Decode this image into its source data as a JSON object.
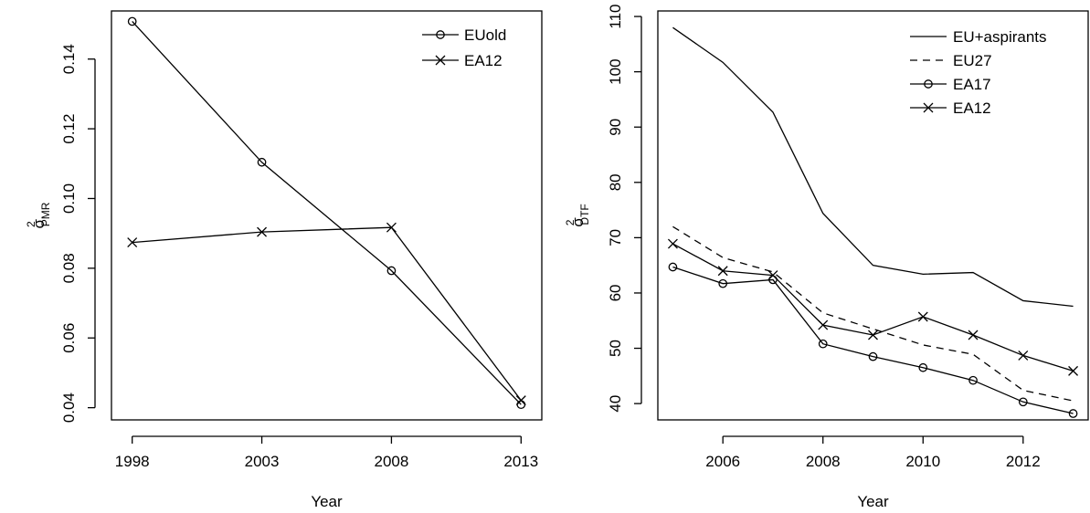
{
  "chart_data": [
    {
      "type": "line",
      "xlabel": "Year",
      "ylabel_main": "σ",
      "ylabel_sup": "2",
      "ylabel_sub": "PMR",
      "xlim": [
        1997.2,
        2013.8
      ],
      "ylim": [
        0.0365,
        0.1538
      ],
      "x_ticks": [
        1998,
        2003,
        2008,
        2013
      ],
      "y_ticks": [
        0.04,
        0.06,
        0.08,
        0.1,
        0.12,
        0.14
      ],
      "y_tick_labels": [
        "0.04",
        "0.06",
        "0.08",
        "0.10",
        "0.12",
        "0.14"
      ],
      "legend_position": "top-right",
      "series": [
        {
          "name": "EUold",
          "marker": "circle",
          "dash": "solid",
          "x": [
            1998,
            2003,
            2008,
            2013
          ],
          "y": [
            0.1508,
            0.1104,
            0.0793,
            0.0409
          ]
        },
        {
          "name": "EA12",
          "marker": "cross",
          "dash": "solid",
          "x": [
            1998,
            2003,
            2008,
            2013
          ],
          "y": [
            0.0874,
            0.0904,
            0.0917,
            0.0421
          ]
        }
      ]
    },
    {
      "type": "line",
      "xlabel": "Year",
      "ylabel_main": "σ",
      "ylabel_sup": "2",
      "ylabel_sub": "DTF",
      "xlim": [
        2004.7,
        2013.3
      ],
      "ylim": [
        37.05,
        111.0
      ],
      "x_ticks": [
        2006,
        2008,
        2010,
        2012
      ],
      "y_ticks": [
        40,
        50,
        60,
        70,
        80,
        90,
        100,
        110
      ],
      "y_tick_labels": [
        "40",
        "50",
        "60",
        "70",
        "80",
        "90",
        "100",
        "110"
      ],
      "legend_position": "top-right",
      "series": [
        {
          "name": "EU+aspirants",
          "marker": "none",
          "dash": "solid",
          "x": [
            2005,
            2006,
            2007,
            2008,
            2009,
            2010,
            2011,
            2012,
            2013
          ],
          "y": [
            108.0,
            101.7,
            92.7,
            74.4,
            65.0,
            63.4,
            63.7,
            58.6,
            57.6
          ]
        },
        {
          "name": "EU27",
          "marker": "none",
          "dash": "dashed",
          "x": [
            2005,
            2006,
            2007,
            2008,
            2009,
            2010,
            2011,
            2012,
            2013
          ],
          "y": [
            72.0,
            66.4,
            63.8,
            56.4,
            53.5,
            50.6,
            48.9,
            42.4,
            40.5
          ]
        },
        {
          "name": "EA17",
          "marker": "circle",
          "dash": "solid",
          "x": [
            2005,
            2006,
            2007,
            2008,
            2009,
            2010,
            2011,
            2012,
            2013
          ],
          "y": [
            64.7,
            61.7,
            62.4,
            50.8,
            48.5,
            46.5,
            44.2,
            40.3,
            38.2
          ]
        },
        {
          "name": "EA12",
          "marker": "cross",
          "dash": "solid",
          "x": [
            2005,
            2006,
            2007,
            2008,
            2009,
            2010,
            2011,
            2012,
            2013
          ],
          "y": [
            68.9,
            64.0,
            63.2,
            54.2,
            52.4,
            55.7,
            52.4,
            48.7,
            45.9
          ]
        }
      ]
    }
  ]
}
